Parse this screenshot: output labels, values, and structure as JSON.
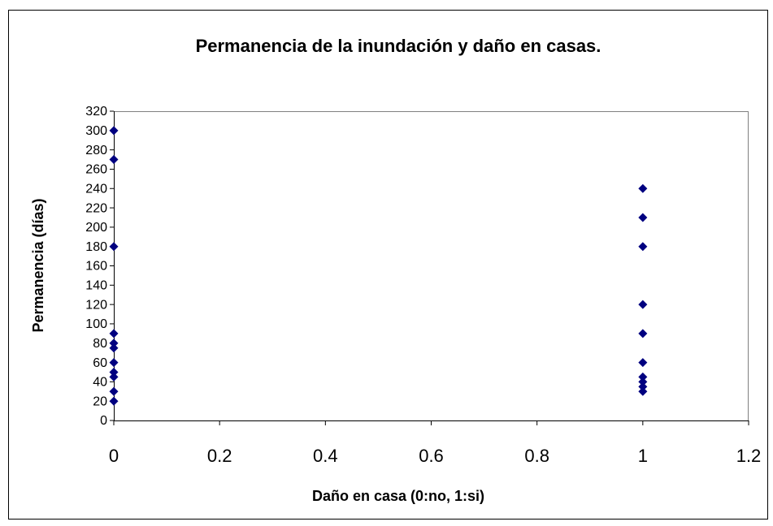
{
  "chart_data": {
    "type": "scatter",
    "title": "Permanencia de la inundación y daño en casas.",
    "x_label": "Daño en casa (0:no, 1:si)",
    "y_label": "Permanencia (días)",
    "x": [
      0,
      0,
      0,
      0,
      0,
      0,
      0,
      0,
      0,
      0,
      0,
      1,
      1,
      1,
      1,
      1,
      1,
      1,
      1,
      1,
      1
    ],
    "y": [
      300,
      270,
      180,
      90,
      80,
      75,
      60,
      50,
      45,
      30,
      20,
      240,
      210,
      180,
      120,
      90,
      60,
      45,
      40,
      35,
      30
    ],
    "color": "#000080",
    "xlim": [
      0,
      1.2
    ],
    "xticks": [
      0,
      0.2,
      0.4,
      0.6,
      0.8,
      1,
      1.2
    ],
    "ylim": [
      0,
      320
    ],
    "yticks": [
      0,
      20,
      40,
      60,
      80,
      100,
      120,
      140,
      160,
      180,
      200,
      220,
      240,
      260,
      280,
      300,
      320
    ],
    "grid": false
  }
}
